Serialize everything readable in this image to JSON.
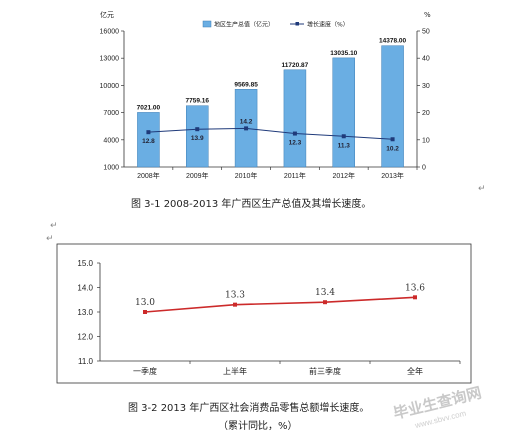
{
  "chart_data": [
    {
      "type": "bar",
      "unit_left": "亿元",
      "unit_right": "%",
      "categories": [
        "2008年",
        "2009年",
        "2010年",
        "2011年",
        "2012年",
        "2013年"
      ],
      "ylim": [
        1000,
        16000
      ],
      "yticks": [
        1000,
        4000,
        7000,
        10000,
        13000,
        16000
      ],
      "y2lim": [
        0,
        50
      ],
      "y2ticks": [
        0,
        10,
        20,
        30,
        40,
        50
      ],
      "series": [
        {
          "name": "地区生产总值（亿元）",
          "kind": "bar",
          "axis": "left",
          "color": "#6aaee3",
          "values": [
            7021.0,
            7759.16,
            9569.85,
            11720.87,
            13035.1,
            14378.0
          ],
          "labels": [
            "7021.00",
            "7759.16",
            "9569.85",
            "11720.87",
            "13035.10",
            "14378.00"
          ]
        },
        {
          "name": "增长速度（%）",
          "kind": "line",
          "axis": "right",
          "color": "#1f3a7a",
          "values": [
            12.8,
            13.9,
            14.2,
            12.3,
            11.3,
            10.2
          ],
          "labels": [
            "12.8",
            "13.9",
            "14.2",
            "12.3",
            "11.3",
            "10.2"
          ]
        }
      ],
      "legend_position": "top-center",
      "caption": "图 3-1 2008-2013 年广西区生产总值及其增长速度。"
    },
    {
      "type": "line",
      "categories": [
        "一季度",
        "上半年",
        "前三季度",
        "全年"
      ],
      "ylim": [
        11.0,
        15.0
      ],
      "yticks": [
        "11.0",
        "12.0",
        "13.0",
        "14.0",
        "15.0"
      ],
      "series": [
        {
          "name": "",
          "color": "#cc2a2a",
          "values": [
            13.0,
            13.3,
            13.4,
            13.6
          ],
          "labels": [
            "13.0",
            "13.3",
            "13.4",
            "13.6"
          ]
        }
      ],
      "caption": "图 3-2 2013 年广西区社会消费品零售总额增长速度。",
      "caption_line2": "（累计同比，%）"
    }
  ],
  "para_marks": [
    "↵",
    "↵",
    "↵",
    "↵"
  ],
  "watermark": {
    "text": "毕业生查询网",
    "url": "www.sbvv.com"
  }
}
